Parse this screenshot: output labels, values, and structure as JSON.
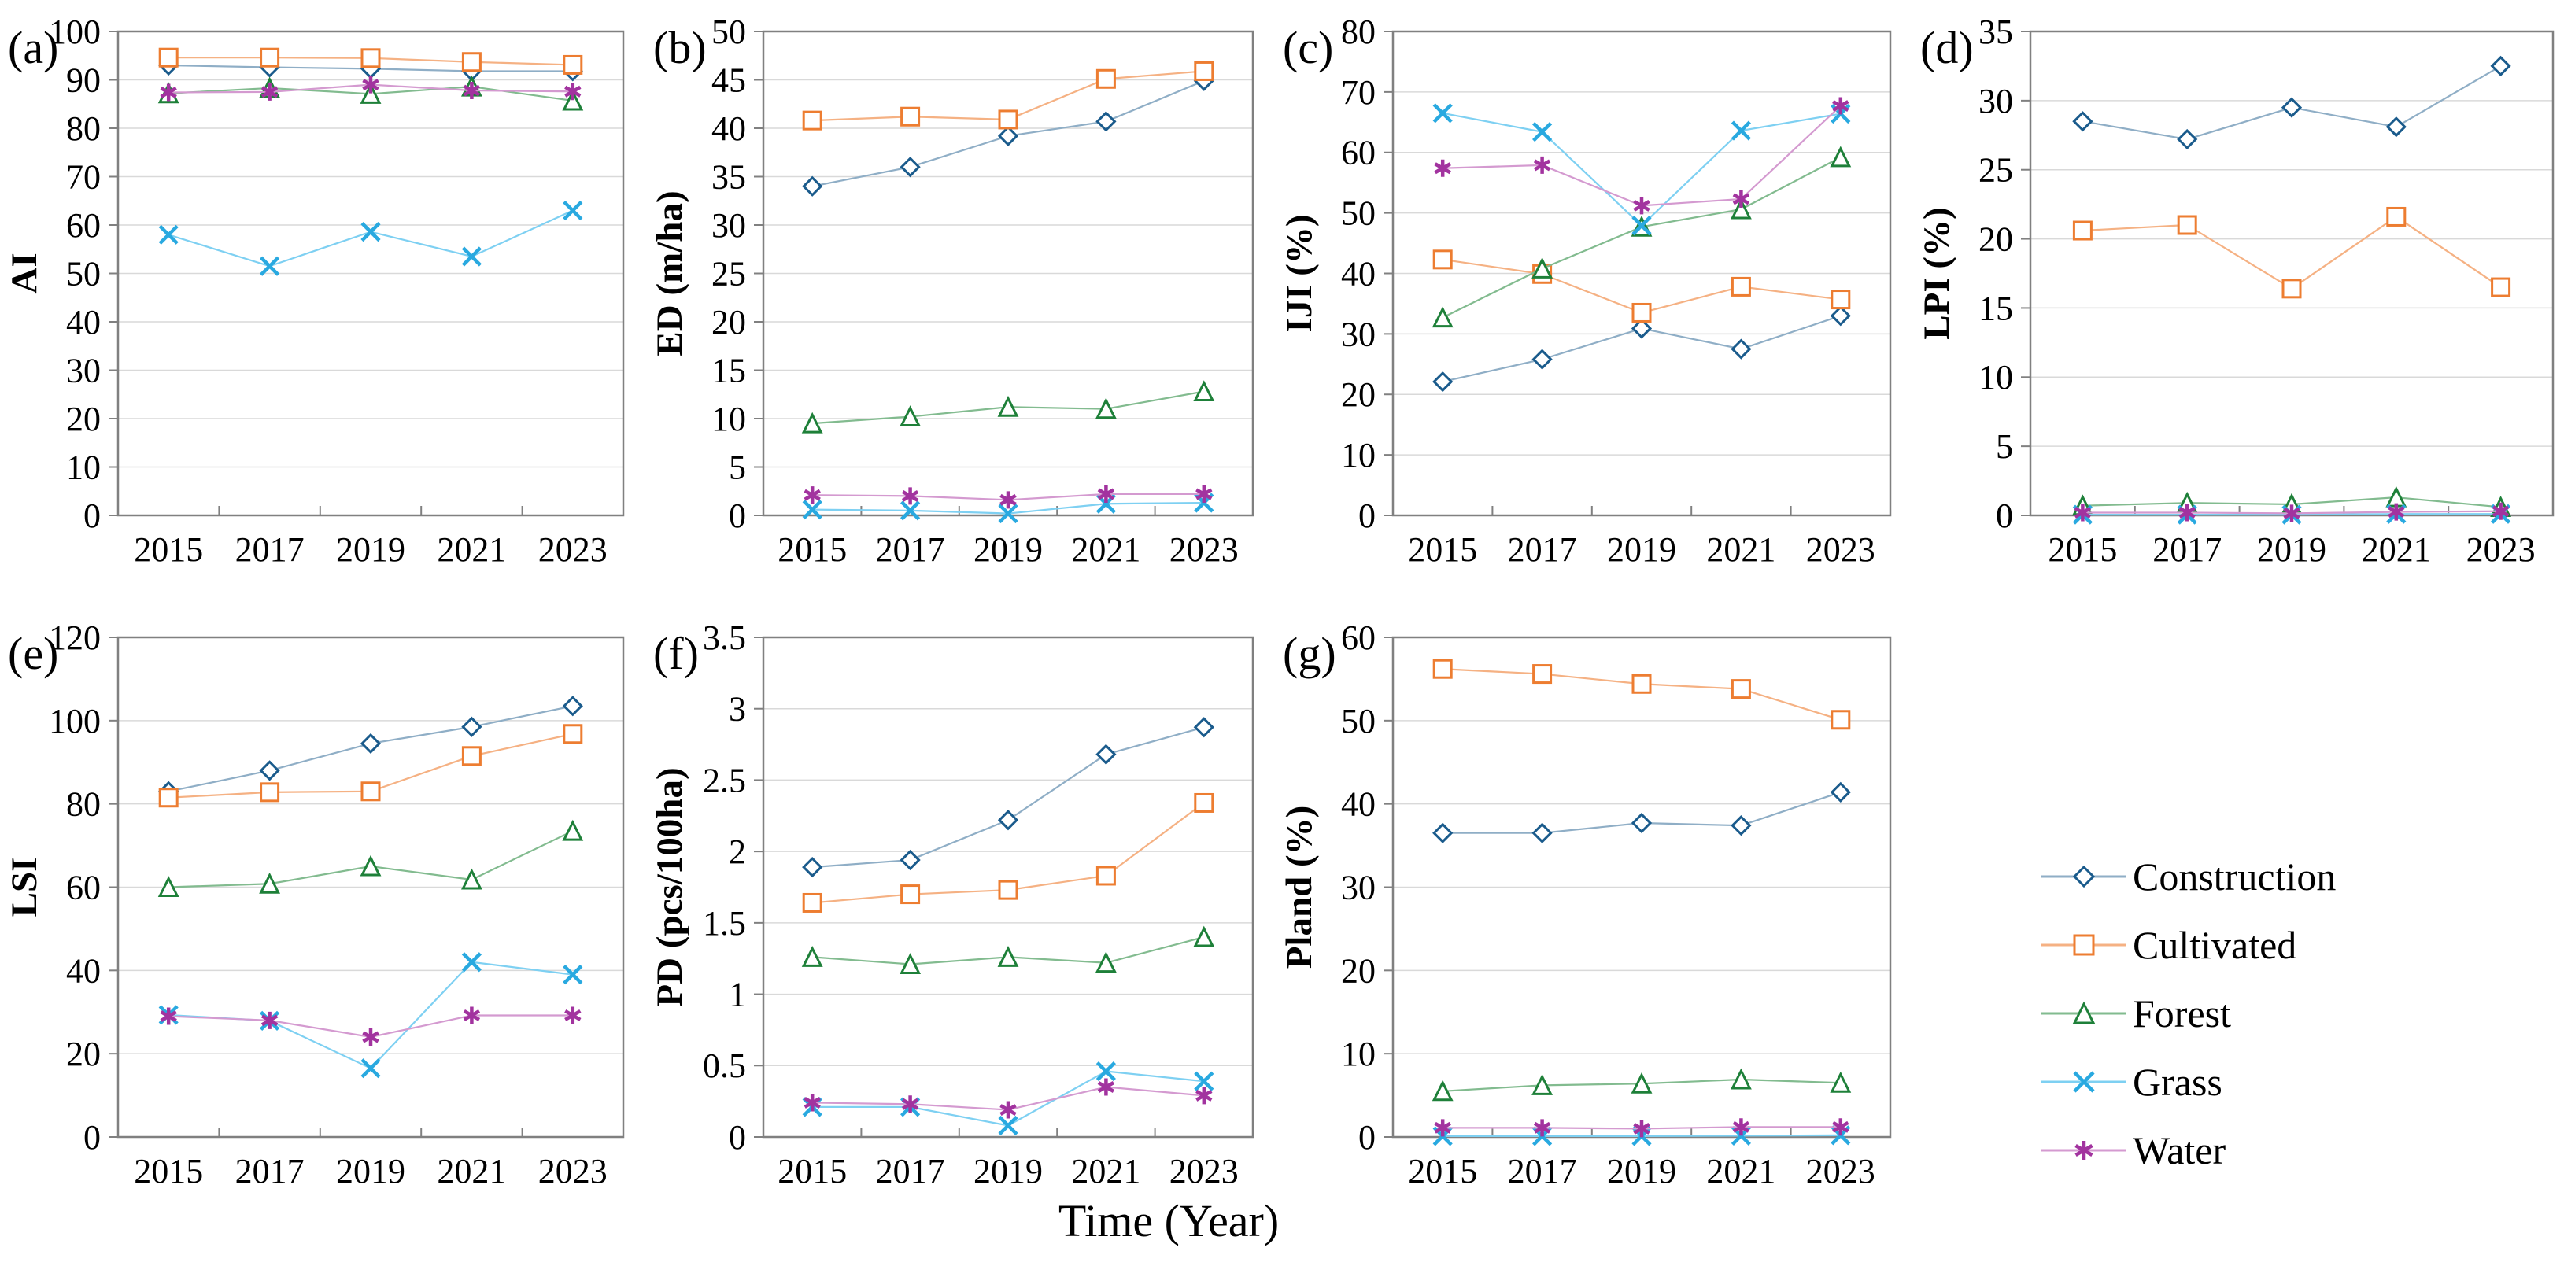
{
  "figure": {
    "xlabel": "Time (Year)",
    "background": "#ffffff",
    "grid": "horizontal",
    "grid_color": "#D9D9D9",
    "axis_color": "#808080",
    "legend_position": "bottom-right"
  },
  "series": [
    {
      "name": "Construction",
      "marker": "diamond",
      "color": "#1A5B8C",
      "line_color": "#8FAEC6"
    },
    {
      "name": "Cultivated",
      "marker": "square",
      "color": "#ED7D31",
      "line_color": "#F5B183"
    },
    {
      "name": "Forest",
      "marker": "triangle",
      "color": "#1E8039",
      "line_color": "#82BB8F"
    },
    {
      "name": "Grass",
      "marker": "x",
      "color": "#29A9E0",
      "line_color": "#7ED0F2"
    },
    {
      "name": "Water",
      "marker": "asterisk",
      "color": "#A2339F",
      "line_color": "#D49AD0"
    }
  ],
  "chart_data": [
    {
      "type": "line",
      "panel_label": "(a)",
      "ylabel": "AI",
      "xlabel": "",
      "ylim": [
        0,
        100
      ],
      "ytick_step": 10,
      "categories": [
        "2015",
        "2017",
        "2019",
        "2021",
        "2023"
      ],
      "series": [
        {
          "name": "Construction",
          "values": [
            93.0,
            92.6,
            92.3,
            91.8,
            91.8
          ]
        },
        {
          "name": "Cultivated",
          "values": [
            94.6,
            94.6,
            94.5,
            93.7,
            93.1
          ]
        },
        {
          "name": "Forest",
          "values": [
            87.2,
            88.3,
            87.1,
            88.6,
            85.7
          ]
        },
        {
          "name": "Grass",
          "values": [
            58.0,
            51.5,
            58.6,
            53.5,
            63.0
          ]
        },
        {
          "name": "Water",
          "values": [
            87.4,
            87.5,
            89.0,
            87.8,
            87.6
          ]
        }
      ]
    },
    {
      "type": "line",
      "panel_label": "(b)",
      "ylabel": "ED (m/ha)",
      "xlabel": "",
      "ylim": [
        0,
        50
      ],
      "ytick_step": 5,
      "categories": [
        "2015",
        "2017",
        "2019",
        "2021",
        "2023"
      ],
      "series": [
        {
          "name": "Construction",
          "values": [
            34.0,
            36.0,
            39.2,
            40.7,
            44.9
          ]
        },
        {
          "name": "Cultivated",
          "values": [
            40.8,
            41.2,
            40.9,
            45.1,
            45.9
          ]
        },
        {
          "name": "Forest",
          "values": [
            9.5,
            10.2,
            11.2,
            11.0,
            12.8
          ]
        },
        {
          "name": "Grass",
          "values": [
            0.6,
            0.5,
            0.2,
            1.2,
            1.3
          ]
        },
        {
          "name": "Water",
          "values": [
            2.1,
            2.0,
            1.6,
            2.2,
            2.2
          ]
        }
      ]
    },
    {
      "type": "line",
      "panel_label": "(c)",
      "ylabel": "IJI (%)",
      "xlabel": "",
      "ylim": [
        0,
        80
      ],
      "ytick_step": 10,
      "categories": [
        "2015",
        "2017",
        "2019",
        "2021",
        "2023"
      ],
      "series": [
        {
          "name": "Construction",
          "values": [
            22.1,
            25.8,
            30.9,
            27.5,
            33.0
          ]
        },
        {
          "name": "Cultivated",
          "values": [
            42.3,
            39.9,
            33.5,
            37.8,
            35.7
          ]
        },
        {
          "name": "Forest",
          "values": [
            32.7,
            40.8,
            47.7,
            50.6,
            59.2
          ]
        },
        {
          "name": "Grass",
          "values": [
            66.5,
            63.4,
            47.9,
            63.6,
            66.4
          ]
        },
        {
          "name": "Water",
          "values": [
            57.4,
            57.9,
            51.2,
            52.3,
            67.7
          ]
        }
      ]
    },
    {
      "type": "line",
      "panel_label": "(d)",
      "ylabel": "LPI (%)",
      "xlabel": "",
      "ylim": [
        0,
        35
      ],
      "ytick_step": 5,
      "categories": [
        "2015",
        "2017",
        "2019",
        "2021",
        "2023"
      ],
      "series": [
        {
          "name": "Construction",
          "values": [
            28.5,
            27.2,
            29.5,
            28.1,
            32.5
          ]
        },
        {
          "name": "Cultivated",
          "values": [
            20.6,
            21.0,
            16.4,
            21.6,
            16.5
          ]
        },
        {
          "name": "Forest",
          "values": [
            0.7,
            0.9,
            0.8,
            1.3,
            0.6
          ]
        },
        {
          "name": "Grass",
          "values": [
            0.05,
            0.05,
            0.05,
            0.1,
            0.1
          ]
        },
        {
          "name": "Water",
          "values": [
            0.2,
            0.2,
            0.15,
            0.25,
            0.3
          ]
        }
      ]
    },
    {
      "type": "line",
      "panel_label": "(e)",
      "ylabel": "LSI",
      "xlabel": "",
      "ylim": [
        0,
        120
      ],
      "ytick_step": 20,
      "categories": [
        "2015",
        "2017",
        "2019",
        "2021",
        "2023"
      ],
      "series": [
        {
          "name": "Construction",
          "values": [
            83.0,
            88.0,
            94.5,
            98.5,
            103.5
          ]
        },
        {
          "name": "Cultivated",
          "values": [
            81.5,
            82.8,
            83.0,
            91.5,
            96.8
          ]
        },
        {
          "name": "Forest",
          "values": [
            60.0,
            60.8,
            65.0,
            61.8,
            73.5
          ]
        },
        {
          "name": "Grass",
          "values": [
            29.3,
            27.9,
            16.5,
            42.0,
            39.0
          ]
        },
        {
          "name": "Water",
          "values": [
            29.0,
            28.0,
            24.0,
            29.2,
            29.2
          ]
        }
      ]
    },
    {
      "type": "line",
      "panel_label": "(f)",
      "ylabel": "PD (pcs/100ha)",
      "xlabel": "Time (Year)",
      "ylim": [
        0,
        3.5
      ],
      "ytick_step": 0.5,
      "categories": [
        "2015",
        "2017",
        "2019",
        "2021",
        "2023"
      ],
      "series": [
        {
          "name": "Construction",
          "values": [
            1.89,
            1.94,
            2.22,
            2.68,
            2.87
          ]
        },
        {
          "name": "Cultivated",
          "values": [
            1.64,
            1.7,
            1.73,
            1.83,
            2.34
          ]
        },
        {
          "name": "Forest",
          "values": [
            1.26,
            1.21,
            1.26,
            1.22,
            1.4
          ]
        },
        {
          "name": "Grass",
          "values": [
            0.21,
            0.21,
            0.08,
            0.46,
            0.39
          ]
        },
        {
          "name": "Water",
          "values": [
            0.24,
            0.23,
            0.19,
            0.35,
            0.29
          ]
        }
      ]
    },
    {
      "type": "line",
      "panel_label": "(g)",
      "ylabel": "Pland (%)",
      "xlabel": "",
      "ylim": [
        0,
        60
      ],
      "ytick_step": 10,
      "categories": [
        "2015",
        "2017",
        "2019",
        "2021",
        "2023"
      ],
      "series": [
        {
          "name": "Construction",
          "values": [
            36.5,
            36.5,
            37.7,
            37.4,
            41.4
          ]
        },
        {
          "name": "Cultivated",
          "values": [
            56.2,
            55.6,
            54.4,
            53.8,
            50.1
          ]
        },
        {
          "name": "Forest",
          "values": [
            5.5,
            6.2,
            6.4,
            6.9,
            6.5
          ]
        },
        {
          "name": "Grass",
          "values": [
            0.1,
            0.1,
            0.1,
            0.15,
            0.2
          ]
        },
        {
          "name": "Water",
          "values": [
            1.1,
            1.1,
            1.0,
            1.2,
            1.2
          ]
        }
      ]
    }
  ]
}
